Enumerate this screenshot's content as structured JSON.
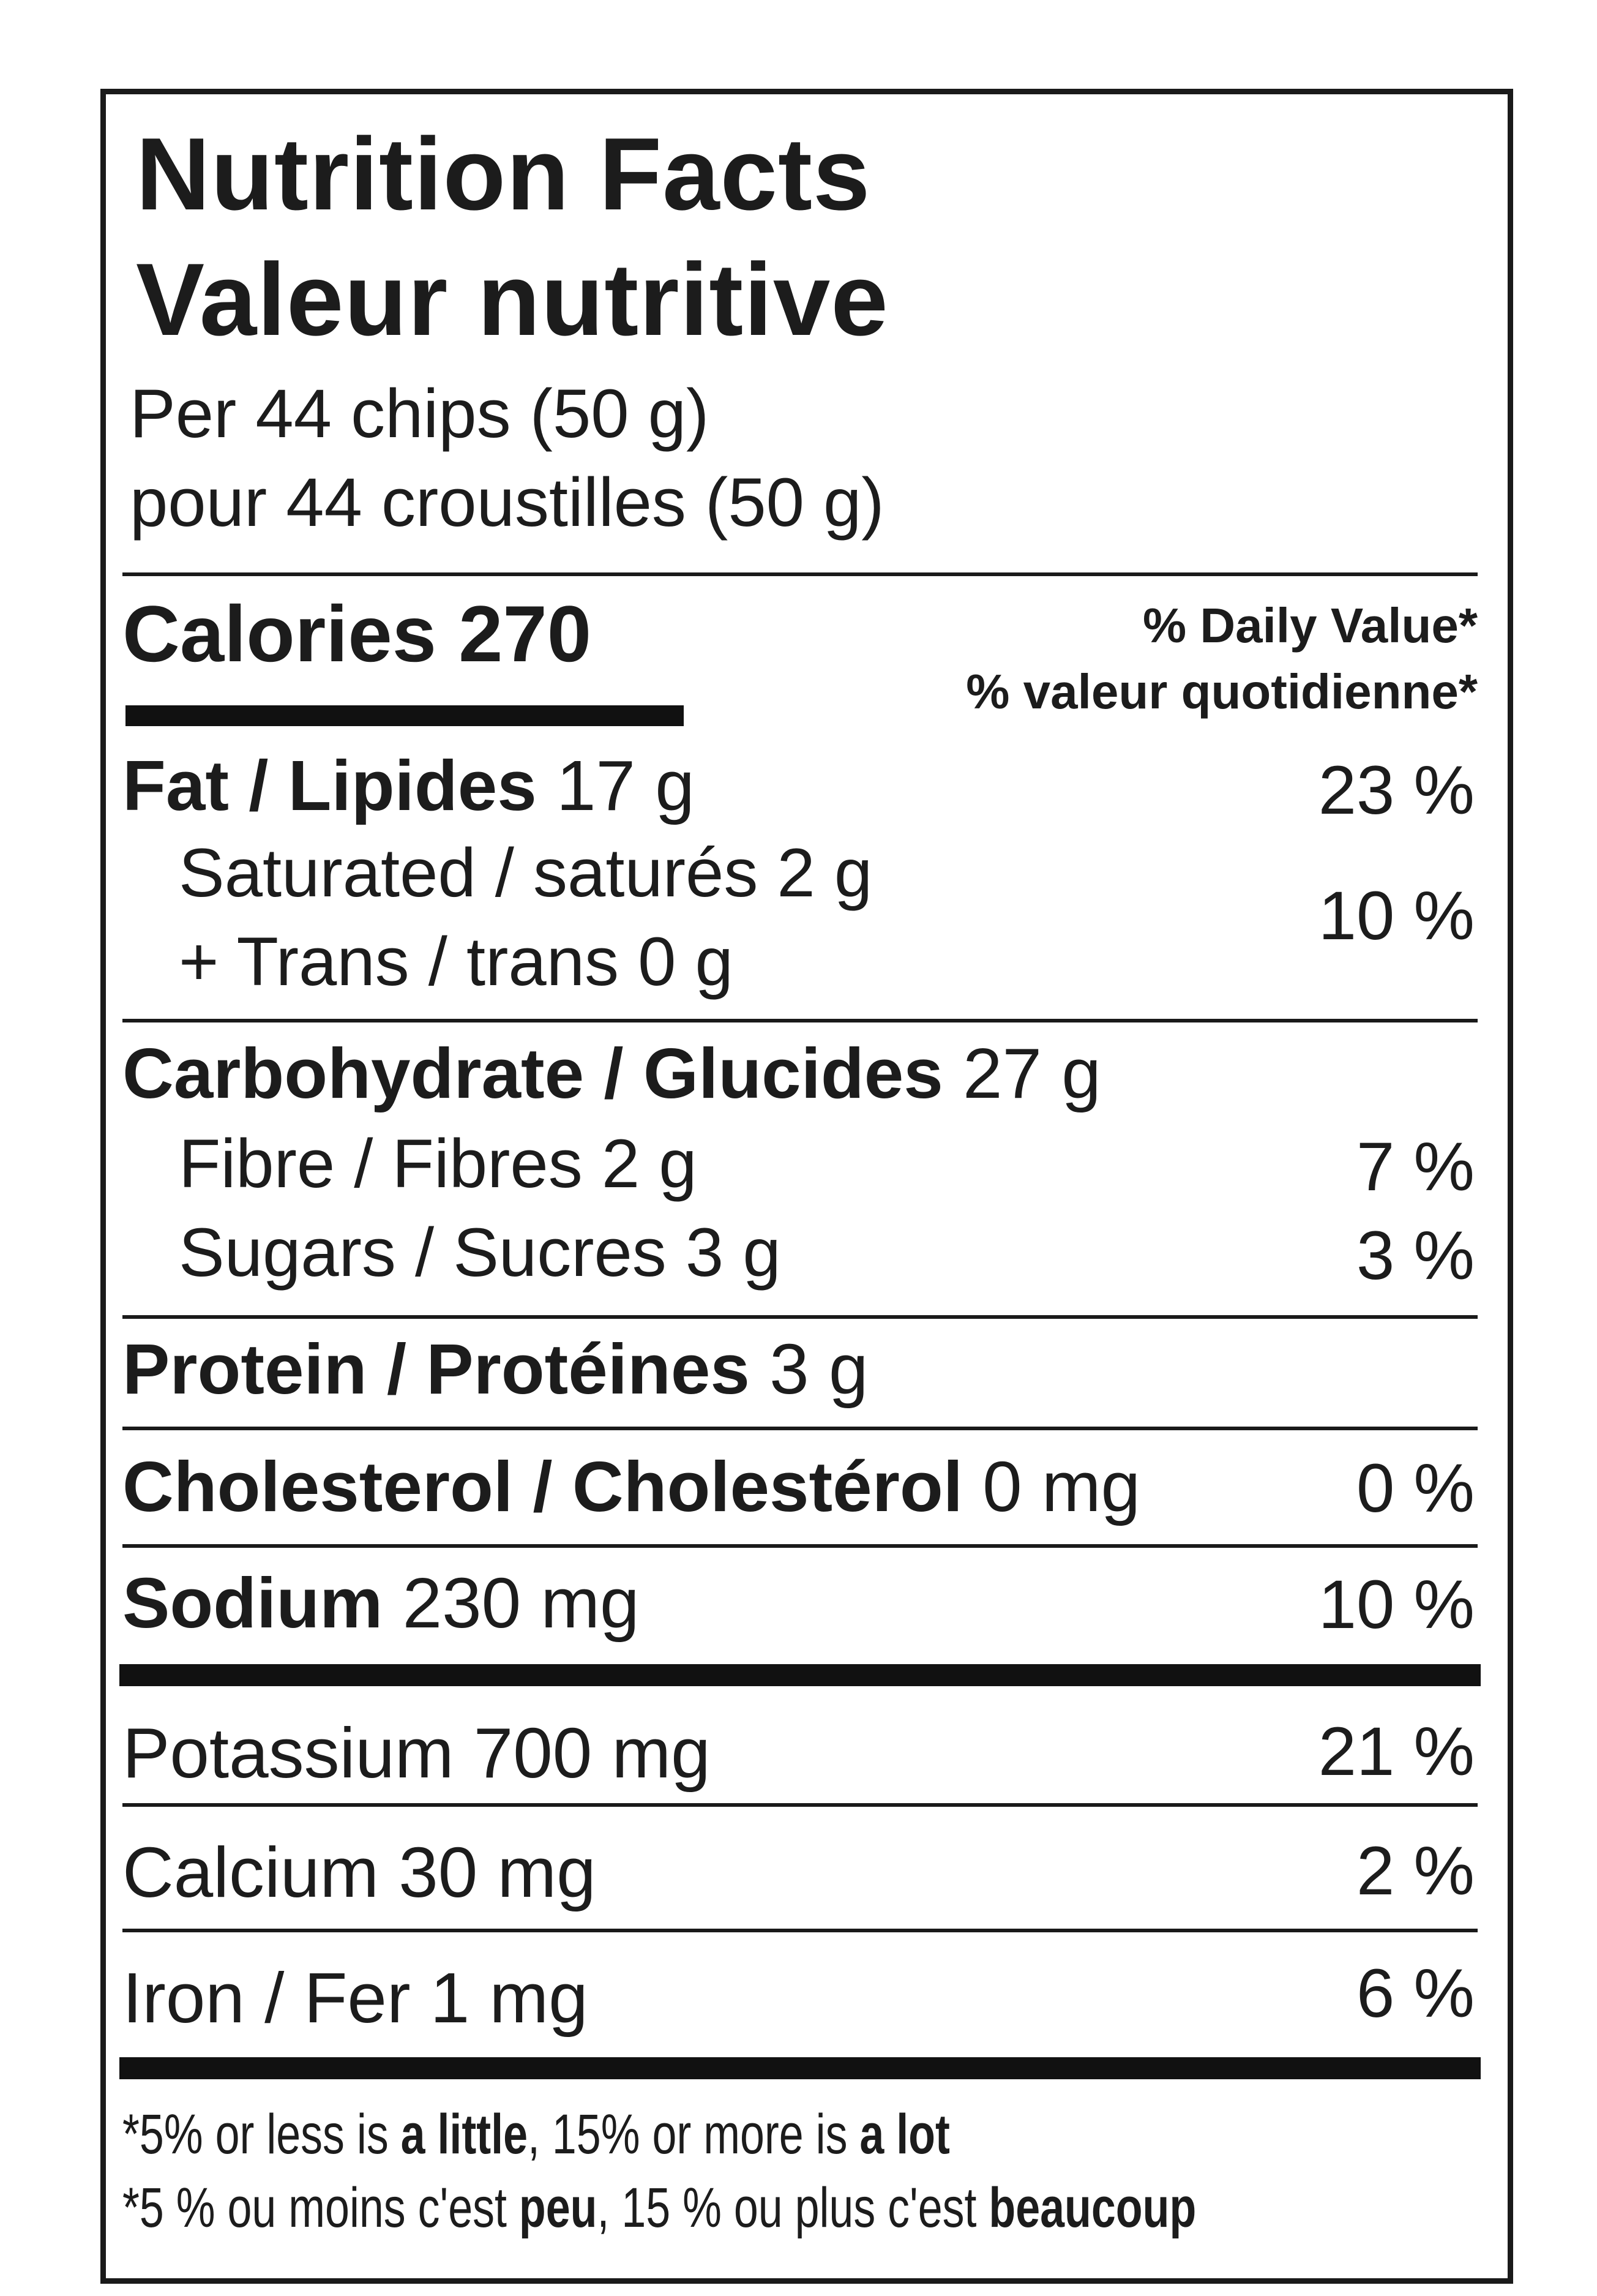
{
  "title_en": "Nutrition Facts",
  "title_fr": "Valeur nutritive",
  "serving_en": "Per 44 chips (50 g)",
  "serving_fr": "pour 44 croustilles (50 g)",
  "calories": {
    "label": "Calories",
    "value": "270"
  },
  "daily_value_en": "% Daily Value*",
  "daily_value_fr": "% valeur quotidienne*",
  "nutrients": {
    "fat": {
      "label": "Fat / Lipides",
      "amount": "17 g",
      "dv": "23 %"
    },
    "saturated": {
      "label": "Saturated / saturés 2 g"
    },
    "trans": {
      "label": "+ Trans / trans 0 g"
    },
    "sat_trans_dv": "10 %",
    "carb": {
      "label": "Carbohydrate / Glucides",
      "amount": "27 g"
    },
    "fibre": {
      "label": "Fibre / Fibres 2 g",
      "dv": "7 %"
    },
    "sugars": {
      "label": "Sugars / Sucres 3 g",
      "dv": "3 %"
    },
    "protein": {
      "label": "Protein / Protéines",
      "amount": "3 g"
    },
    "cholesterol": {
      "label_en": "Cholesterol /",
      "label_fr": "Cholestérol",
      "amount": "0 mg",
      "dv": "0 %"
    },
    "sodium": {
      "label": "Sodium",
      "amount": "230 mg",
      "dv": "10 %"
    },
    "potassium": {
      "label": "Potassium 700 mg",
      "dv": "21 %"
    },
    "calcium": {
      "label": "Calcium 30 mg",
      "dv": "2 %"
    },
    "iron": {
      "label": "Iron / Fer 1 mg",
      "dv": "6 %"
    }
  },
  "footnote_en": {
    "a": "*5% or less is ",
    "b": "a little",
    "c": ", 15% or more is ",
    "d": "a lot"
  },
  "footnote_fr": {
    "a": "*5 % ou moins c'est ",
    "b": "peu",
    "c": ", 15 % ou plus c'est ",
    "d": "beaucoup"
  }
}
